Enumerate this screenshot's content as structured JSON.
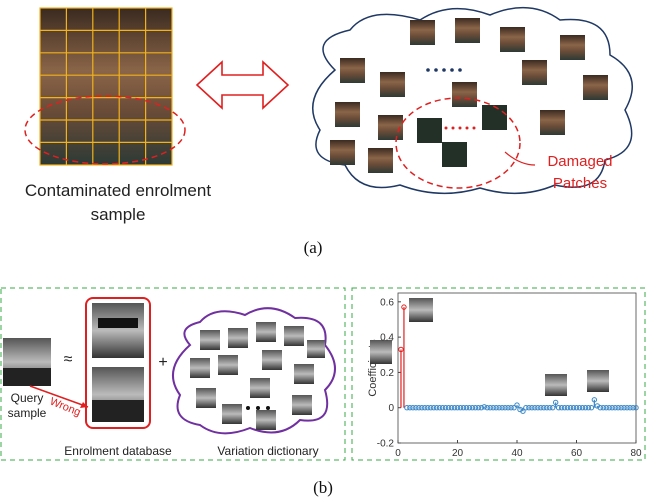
{
  "panel_a": {
    "enrolment_label": [
      "Contaminated enrolment",
      "sample"
    ],
    "damaged_label": [
      "Damaged",
      "Patches"
    ],
    "caption": "(a)"
  },
  "panel_b": {
    "query_label": [
      "Query",
      "sample"
    ],
    "approx": "≈",
    "wrong": "Wrong",
    "plus": "+",
    "enrolment_label": "Enrolment database",
    "dictionary_label": "Variation dictionary",
    "caption": "(b)",
    "chart_data": {
      "type": "stem",
      "ylabel": "Coefficients",
      "xlim": [
        0,
        80
      ],
      "xticks": [
        0,
        20,
        40,
        60,
        80
      ],
      "ylim": [
        -0.2,
        0.65
      ],
      "yticks": [
        -0.2,
        0,
        0.2,
        0.4,
        0.6
      ],
      "series": [
        {
          "color": "#e02020",
          "x": [
            1,
            2
          ],
          "values": [
            0.33,
            0.57
          ]
        },
        {
          "color": "#3a87c8",
          "x": [
            3,
            4,
            5,
            6,
            7,
            8,
            9,
            10,
            11,
            12,
            13,
            14,
            15,
            16,
            17,
            18,
            19,
            20,
            21,
            22,
            23,
            24,
            25,
            26,
            27,
            28,
            29,
            30,
            31,
            32,
            33,
            34,
            35,
            36,
            37,
            38,
            39,
            40,
            41,
            42,
            43,
            44,
            45,
            46,
            47,
            48,
            49,
            50,
            51,
            52,
            53,
            54,
            55,
            56,
            57,
            58,
            59,
            60,
            61,
            62,
            63,
            64,
            65,
            66,
            67,
            68,
            69,
            70,
            71,
            72,
            73,
            74,
            75,
            76,
            77,
            78,
            79,
            80
          ],
          "values": [
            0,
            0,
            0,
            0,
            0,
            0,
            0,
            0,
            0,
            0,
            0,
            0,
            0,
            0,
            0,
            0,
            0,
            0,
            0,
            0,
            0,
            0,
            0,
            0,
            0,
            0,
            0.005,
            0,
            0,
            0,
            0,
            0,
            0,
            0,
            0,
            0,
            0,
            0.015,
            -0.01,
            -0.02,
            0,
            0,
            0,
            0,
            0,
            0,
            0,
            0,
            0,
            0,
            0.03,
            0,
            0,
            0,
            0,
            0,
            0,
            0,
            0,
            0,
            0,
            0,
            0,
            0.045,
            0.01,
            0,
            0,
            0,
            0,
            0,
            0,
            0,
            0,
            0,
            0,
            0,
            0,
            0
          ]
        }
      ]
    }
  }
}
